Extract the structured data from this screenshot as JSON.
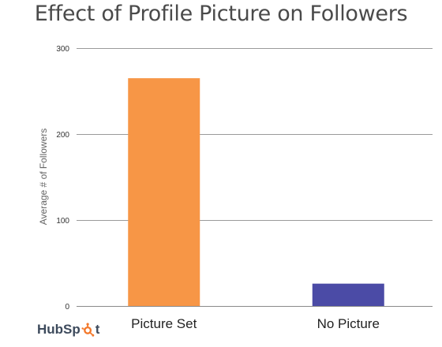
{
  "chart_data": {
    "type": "bar",
    "title": "Effect of Profile Picture on Followers",
    "xlabel": "",
    "ylabel": "Average # of Followers",
    "categories": [
      "Picture Set",
      "No Picture"
    ],
    "values": [
      265,
      26
    ],
    "colors": [
      "#F79646",
      "#4B4BA6"
    ],
    "ylim": [
      0,
      300
    ],
    "yticks": [
      0,
      100,
      200,
      300
    ],
    "grid": true
  },
  "logo": {
    "text_pre": "Hub",
    "text_post": "t",
    "accent_color": "#F3782B"
  }
}
